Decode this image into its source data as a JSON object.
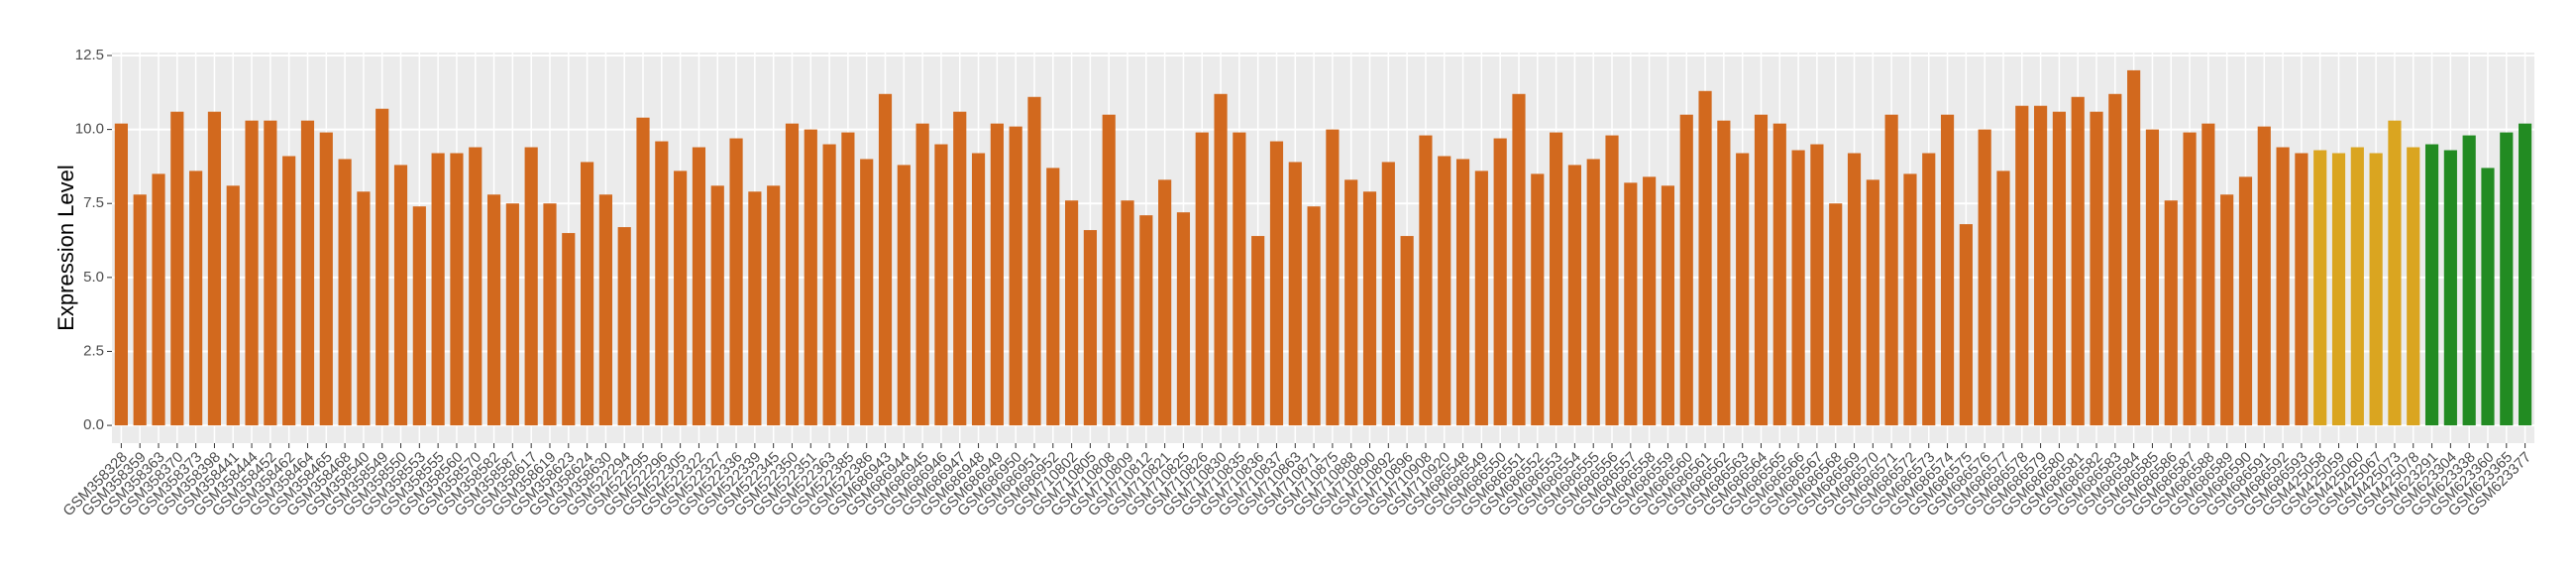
{
  "chart_data": {
    "type": "bar",
    "ylabel": "Expression Level",
    "categories": [
      "GSM358328",
      "GSM358359",
      "GSM358363",
      "GSM358370",
      "GSM358373",
      "GSM358398",
      "GSM358441",
      "GSM358444",
      "GSM358452",
      "GSM358462",
      "GSM358464",
      "GSM358465",
      "GSM358468",
      "GSM358540",
      "GSM358549",
      "GSM358550",
      "GSM358553",
      "GSM358555",
      "GSM358560",
      "GSM358570",
      "GSM358582",
      "GSM358587",
      "GSM358617",
      "GSM358619",
      "GSM358623",
      "GSM358624",
      "GSM358630",
      "GSM522294",
      "GSM522295",
      "GSM522296",
      "GSM522305",
      "GSM522322",
      "GSM522327",
      "GSM522336",
      "GSM522339",
      "GSM522345",
      "GSM522350",
      "GSM522351",
      "GSM522363",
      "GSM522385",
      "GSM522386",
      "GSM686943",
      "GSM686944",
      "GSM686945",
      "GSM686946",
      "GSM686947",
      "GSM686948",
      "GSM686949",
      "GSM686950",
      "GSM686951",
      "GSM686952",
      "GSM710802",
      "GSM710805",
      "GSM710808",
      "GSM710809",
      "GSM710812",
      "GSM710821",
      "GSM710825",
      "GSM710826",
      "GSM710830",
      "GSM710835",
      "GSM710836",
      "GSM710837",
      "GSM710863",
      "GSM710871",
      "GSM710875",
      "GSM710888",
      "GSM710890",
      "GSM710892",
      "GSM710896",
      "GSM710908",
      "GSM710920",
      "GSM686548",
      "GSM686549",
      "GSM686550",
      "GSM686551",
      "GSM686552",
      "GSM686553",
      "GSM686554",
      "GSM686555",
      "GSM686556",
      "GSM686557",
      "GSM686558",
      "GSM686559",
      "GSM686560",
      "GSM686561",
      "GSM686562",
      "GSM686563",
      "GSM686564",
      "GSM686565",
      "GSM686566",
      "GSM686567",
      "GSM686568",
      "GSM686569",
      "GSM686570",
      "GSM686571",
      "GSM686572",
      "GSM686573",
      "GSM686574",
      "GSM686575",
      "GSM686576",
      "GSM686577",
      "GSM686578",
      "GSM686579",
      "GSM686580",
      "GSM686581",
      "GSM686582",
      "GSM686583",
      "GSM686584",
      "GSM686585",
      "GSM686586",
      "GSM686587",
      "GSM686588",
      "GSM686589",
      "GSM686590",
      "GSM686591",
      "GSM686592",
      "GSM686593",
      "GSM425058",
      "GSM425059",
      "GSM425060",
      "GSM425067",
      "GSM425073",
      "GSM425078",
      "GSM623291",
      "GSM623304",
      "GSM623338",
      "GSM623360",
      "GSM623365",
      "GSM623377"
    ],
    "values": [
      10.2,
      7.8,
      8.5,
      10.6,
      8.6,
      10.6,
      8.1,
      10.3,
      10.3,
      9.1,
      10.3,
      9.9,
      9.0,
      7.9,
      10.7,
      8.8,
      7.4,
      9.2,
      9.2,
      9.4,
      7.8,
      7.5,
      9.4,
      7.5,
      6.5,
      8.9,
      7.8,
      6.7,
      10.4,
      9.6,
      8.6,
      9.4,
      8.1,
      9.7,
      7.9,
      8.1,
      10.2,
      10.0,
      9.5,
      9.9,
      9.0,
      11.2,
      8.8,
      10.2,
      9.5,
      10.6,
      9.2,
      10.2,
      10.1,
      11.1,
      8.7,
      7.6,
      6.6,
      10.5,
      7.6,
      7.1,
      8.3,
      7.2,
      9.9,
      11.2,
      9.9,
      6.4,
      9.6,
      8.9,
      7.4,
      10.0,
      8.3,
      7.9,
      8.9,
      6.4,
      9.8,
      9.1,
      9.0,
      8.6,
      9.7,
      11.2,
      8.5,
      9.9,
      8.8,
      9.0,
      9.8,
      8.2,
      8.4,
      8.1,
      10.5,
      11.3,
      10.3,
      9.2,
      10.5,
      10.2,
      9.3,
      9.5,
      7.5,
      9.2,
      8.3,
      10.5,
      8.5,
      9.2,
      10.5,
      6.8,
      10.0,
      8.6,
      10.8,
      10.8,
      10.6,
      11.1,
      10.6,
      11.2,
      12.0,
      10.0,
      7.6,
      9.9,
      10.2,
      7.8,
      8.4,
      10.1,
      9.4,
      9.2,
      9.3,
      9.2,
      9.4,
      9.2,
      10.3,
      9.4,
      9.5,
      9.3,
      9.8,
      8.7,
      9.9,
      10.2
    ],
    "colors": [
      "#d2691e",
      "#d2691e",
      "#d2691e",
      "#d2691e",
      "#d2691e",
      "#d2691e",
      "#d2691e",
      "#d2691e",
      "#d2691e",
      "#d2691e",
      "#d2691e",
      "#d2691e",
      "#d2691e",
      "#d2691e",
      "#d2691e",
      "#d2691e",
      "#d2691e",
      "#d2691e",
      "#d2691e",
      "#d2691e",
      "#d2691e",
      "#d2691e",
      "#d2691e",
      "#d2691e",
      "#d2691e",
      "#d2691e",
      "#d2691e",
      "#d2691e",
      "#d2691e",
      "#d2691e",
      "#d2691e",
      "#d2691e",
      "#d2691e",
      "#d2691e",
      "#d2691e",
      "#d2691e",
      "#d2691e",
      "#d2691e",
      "#d2691e",
      "#d2691e",
      "#d2691e",
      "#d2691e",
      "#d2691e",
      "#d2691e",
      "#d2691e",
      "#d2691e",
      "#d2691e",
      "#d2691e",
      "#d2691e",
      "#d2691e",
      "#d2691e",
      "#d2691e",
      "#d2691e",
      "#d2691e",
      "#d2691e",
      "#d2691e",
      "#d2691e",
      "#d2691e",
      "#d2691e",
      "#d2691e",
      "#d2691e",
      "#d2691e",
      "#d2691e",
      "#d2691e",
      "#d2691e",
      "#d2691e",
      "#d2691e",
      "#d2691e",
      "#d2691e",
      "#d2691e",
      "#d2691e",
      "#d2691e",
      "#d2691e",
      "#d2691e",
      "#d2691e",
      "#d2691e",
      "#d2691e",
      "#d2691e",
      "#d2691e",
      "#d2691e",
      "#d2691e",
      "#d2691e",
      "#d2691e",
      "#d2691e",
      "#d2691e",
      "#d2691e",
      "#d2691e",
      "#d2691e",
      "#d2691e",
      "#d2691e",
      "#d2691e",
      "#d2691e",
      "#d2691e",
      "#d2691e",
      "#d2691e",
      "#d2691e",
      "#d2691e",
      "#d2691e",
      "#d2691e",
      "#d2691e",
      "#d2691e",
      "#d2691e",
      "#d2691e",
      "#d2691e",
      "#d2691e",
      "#d2691e",
      "#d2691e",
      "#d2691e",
      "#d2691e",
      "#d2691e",
      "#d2691e",
      "#d2691e",
      "#d2691e",
      "#d2691e",
      "#d2691e",
      "#d2691e",
      "#d2691e",
      "#d2691e",
      "#daa520",
      "#daa520",
      "#daa520",
      "#daa520",
      "#daa520",
      "#daa520",
      "#228b22",
      "#228b22",
      "#228b22",
      "#228b22",
      "#228b22",
      "#228b22"
    ],
    "ylim": [
      -0.6,
      12.6
    ],
    "yticks": [
      {
        "value": 0,
        "label": "0.0"
      },
      2.5,
      {
        "value": 5,
        "label": "5.0"
      },
      7.5,
      {
        "value": 10,
        "label": "10.0"
      },
      12.5
    ],
    "grid": true
  }
}
